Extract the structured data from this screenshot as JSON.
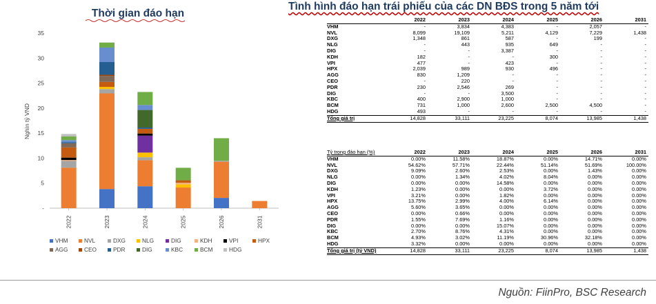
{
  "chart_data": [
    {
      "type": "bar",
      "stacked": true,
      "title": "Thời gian đáo hạn",
      "xlabel": "",
      "ylabel": "Nghìn tỷ VND",
      "ylim": [
        0,
        35
      ],
      "yticks": [
        "-",
        "5",
        "10",
        "15",
        "20",
        "25",
        "30",
        "35"
      ],
      "categories": [
        "2022",
        "2023",
        "2024",
        "2025",
        "2026",
        "2031"
      ],
      "legend_position": "bottom",
      "series": [
        {
          "name": "VHM",
          "color": "#4472c4",
          "values": [
            0,
            3.834,
            4.383,
            0,
            2.057,
            0
          ]
        },
        {
          "name": "NVL",
          "color": "#ed7d31",
          "values": [
            8.099,
            19.109,
            5.211,
            4.129,
            7.229,
            1.438
          ]
        },
        {
          "name": "DXG",
          "color": "#a5a5a5",
          "values": [
            1.348,
            0.861,
            0.587,
            0,
            0.199,
            0
          ]
        },
        {
          "name": "NLG",
          "color": "#ffc000",
          "values": [
            0,
            0.443,
            0.935,
            0.649,
            0,
            0
          ]
        },
        {
          "name": "DIG",
          "color": "#7030a0",
          "values": [
            0,
            0,
            3.387,
            0,
            0,
            0
          ]
        },
        {
          "name": "KDH",
          "color": "#f4b183",
          "values": [
            0.182,
            0,
            0,
            0.3,
            0,
            0
          ]
        },
        {
          "name": "VPI",
          "color": "#000000",
          "values": [
            0.477,
            0,
            0.423,
            0,
            0,
            0
          ]
        },
        {
          "name": "HPX",
          "color": "#c55a11",
          "values": [
            2.039,
            0.989,
            0.93,
            0.496,
            0,
            0
          ]
        },
        {
          "name": "AGG",
          "color": "#7f6a5a",
          "values": [
            0.83,
            1.209,
            0,
            0,
            0,
            0
          ]
        },
        {
          "name": "CEO",
          "color": "#9e480e",
          "values": [
            0,
            0.22,
            0,
            0,
            0,
            0
          ]
        },
        {
          "name": "PDR",
          "color": "#255e91",
          "values": [
            0.23,
            2.546,
            0.269,
            0,
            0,
            0
          ]
        },
        {
          "name": "DIG",
          "color": "#43682b",
          "values": [
            0,
            0,
            3.5,
            0,
            0,
            0
          ]
        },
        {
          "name": "KBC",
          "color": "#698ed0",
          "values": [
            0.4,
            2.9,
            1.0,
            0,
            0,
            0
          ]
        },
        {
          "name": "BCM",
          "color": "#70ad47",
          "values": [
            0.731,
            1.0,
            2.6,
            2.5,
            4.5,
            0
          ]
        },
        {
          "name": "HDG",
          "color": "#bfbfbf",
          "values": [
            0.493,
            0,
            0,
            0,
            0,
            0
          ]
        }
      ]
    },
    {
      "type": "table",
      "title": "Tình hình đáo hạn trái phiếu của các DN BĐS trong 5 năm tới",
      "columns": [
        "2022",
        "2023",
        "2024",
        "2025",
        "2026",
        "2031"
      ],
      "rows": [
        {
          "name": "VHM",
          "values": [
            "-",
            "3,834",
            "4,383",
            "-",
            "2,057",
            "-"
          ]
        },
        {
          "name": "NVL",
          "values": [
            "8,099",
            "19,109",
            "5,211",
            "4,129",
            "7,229",
            "1,438"
          ]
        },
        {
          "name": "DXG",
          "values": [
            "1,348",
            "861",
            "587",
            "-",
            "199",
            "-"
          ]
        },
        {
          "name": "NLG",
          "values": [
            "-",
            "443",
            "935",
            "649",
            "-",
            "-"
          ]
        },
        {
          "name": "DIG",
          "values": [
            "-",
            "-",
            "3,387",
            "-",
            "-",
            "-"
          ]
        },
        {
          "name": "KDH",
          "values": [
            "182",
            "-",
            "-",
            "300",
            "-",
            "-"
          ]
        },
        {
          "name": "VPI",
          "values": [
            "477",
            "-",
            "423",
            "-",
            "-",
            "-"
          ]
        },
        {
          "name": "HPX",
          "values": [
            "2,039",
            "989",
            "930",
            "496",
            "-",
            "-"
          ]
        },
        {
          "name": "AGG",
          "values": [
            "830",
            "1,209",
            "-",
            "-",
            "-",
            "-"
          ]
        },
        {
          "name": "CEO",
          "values": [
            "-",
            "220",
            "-",
            "-",
            "-",
            "-"
          ]
        },
        {
          "name": "PDR",
          "values": [
            "230",
            "2,546",
            "269",
            "-",
            "-",
            "-"
          ]
        },
        {
          "name": "DIG",
          "values": [
            "-",
            "-",
            "3,500",
            "-",
            "-",
            "-"
          ]
        },
        {
          "name": "KBC",
          "values": [
            "400",
            "2,900",
            "1,000",
            "-",
            "-",
            "-"
          ]
        },
        {
          "name": "BCM",
          "values": [
            "731",
            "1,000",
            "2,600",
            "2,500",
            "4,500",
            "-"
          ]
        },
        {
          "name": "HDG",
          "values": [
            "493",
            "-",
            "-",
            "-",
            "-",
            "-"
          ]
        }
      ],
      "total": {
        "name": "Tổng giá trị",
        "values": [
          "14,828",
          "33,111",
          "23,225",
          "8,074",
          "13,985",
          "1,438"
        ]
      }
    },
    {
      "type": "table",
      "header_label": "Tỷ trọng đáo hạn (%)",
      "columns": [
        "2022",
        "2023",
        "2024",
        "2025",
        "2026",
        "2031"
      ],
      "rows": [
        {
          "name": "VHM",
          "values": [
            "0.00%",
            "11.58%",
            "18.87%",
            "0.00%",
            "14.71%",
            "0.00%"
          ]
        },
        {
          "name": "NVL",
          "values": [
            "54.62%",
            "57.71%",
            "22.44%",
            "51.14%",
            "51.69%",
            "100.00%"
          ]
        },
        {
          "name": "DXG",
          "values": [
            "9.09%",
            "2.60%",
            "2.53%",
            "0.00%",
            "1.43%",
            "0.00%"
          ]
        },
        {
          "name": "NLG",
          "values": [
            "0.00%",
            "1.34%",
            "4.02%",
            "8.04%",
            "0.00%",
            "0.00%"
          ]
        },
        {
          "name": "DIG",
          "values": [
            "0.00%",
            "0.00%",
            "14.58%",
            "0.00%",
            "0.00%",
            "0.00%"
          ]
        },
        {
          "name": "KDH",
          "values": [
            "1.23%",
            "0.00%",
            "0.00%",
            "3.72%",
            "0.00%",
            "0.00%"
          ]
        },
        {
          "name": "VPI",
          "values": [
            "3.21%",
            "0.00%",
            "1.82%",
            "0.00%",
            "0.00%",
            "0.00%"
          ]
        },
        {
          "name": "HPX",
          "values": [
            "13.75%",
            "2.99%",
            "4.00%",
            "6.14%",
            "0.00%",
            "0.00%"
          ]
        },
        {
          "name": "AGG",
          "values": [
            "5.60%",
            "3.65%",
            "0.00%",
            "0.00%",
            "0.00%",
            "0.00%"
          ]
        },
        {
          "name": "CEO",
          "values": [
            "0.00%",
            "0.66%",
            "0.00%",
            "0.00%",
            "0.00%",
            "0.00%"
          ]
        },
        {
          "name": "PDR",
          "values": [
            "1.55%",
            "7.69%",
            "1.16%",
            "0.00%",
            "0.00%",
            "0.00%"
          ]
        },
        {
          "name": "DIG",
          "values": [
            "0.00%",
            "0.00%",
            "15.07%",
            "0.00%",
            "0.00%",
            "0.00%"
          ]
        },
        {
          "name": "KBC",
          "values": [
            "2.70%",
            "8.76%",
            "4.31%",
            "0.00%",
            "0.00%",
            "0.00%"
          ]
        },
        {
          "name": "BCM",
          "values": [
            "4.93%",
            "3.02%",
            "11.19%",
            "30.96%",
            "32.18%",
            "0.00%"
          ]
        },
        {
          "name": "HDG",
          "values": [
            "3.32%",
            "0.00%",
            "0.00%",
            "0.00%",
            "0.00%",
            "0.00%"
          ]
        }
      ],
      "total": {
        "name": "Tổng giá trị (tỷ VND)",
        "values": [
          "14,828",
          "33,111",
          "23,225",
          "8,074",
          "13,985",
          "1,438"
        ]
      }
    }
  ],
  "source": "Nguồn: FiinPro, BSC Research"
}
